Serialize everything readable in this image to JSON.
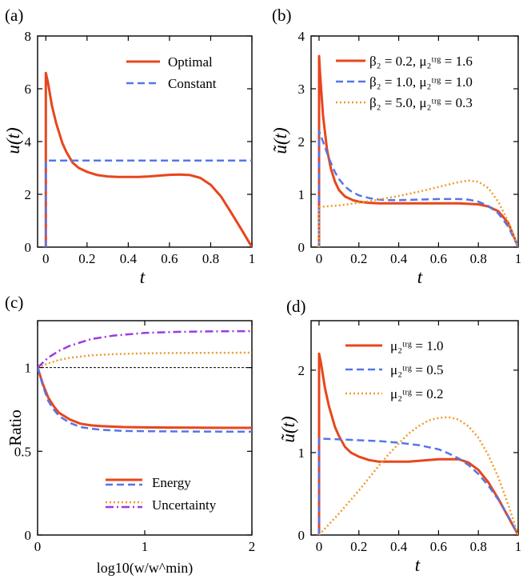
{
  "colors": {
    "red": "#e8461c",
    "blue": "#5576e8",
    "orange": "#f29a2a",
    "purple": "#9b3be0",
    "black": "#000000"
  },
  "chart_data": [
    {
      "id": "a",
      "panel_label": "(a)",
      "type": "line",
      "xlabel": "t",
      "ylabel": "u(t)",
      "xlim": [
        -0.04,
        1.0
      ],
      "ylim": [
        0,
        8
      ],
      "xticks": [
        0,
        0.2,
        0.4,
        0.6,
        0.8,
        1.0
      ],
      "xtick_labels": [
        "0",
        "0.2",
        "0.4",
        "0.6",
        "0.8",
        "1"
      ],
      "yticks": [
        0,
        2,
        4,
        6,
        8
      ],
      "ytick_labels": [
        "0",
        "2",
        "4",
        "6",
        "8"
      ],
      "legend_position": "top-right",
      "series": [
        {
          "name": "Optimal",
          "color": "red",
          "style": "solid",
          "x": [
            0,
            0,
            0.01,
            0.03,
            0.05,
            0.08,
            0.1,
            0.13,
            0.16,
            0.2,
            0.25,
            0.3,
            0.35,
            0.4,
            0.45,
            0.5,
            0.55,
            0.6,
            0.65,
            0.7,
            0.75,
            0.8,
            0.85,
            0.9,
            0.95,
            1.0
          ],
          "y": [
            0,
            6.6,
            6.25,
            5.35,
            4.7,
            3.95,
            3.6,
            3.2,
            3.0,
            2.85,
            2.73,
            2.68,
            2.66,
            2.66,
            2.66,
            2.68,
            2.71,
            2.74,
            2.75,
            2.73,
            2.62,
            2.36,
            1.92,
            1.3,
            0.66,
            0.0
          ]
        },
        {
          "name": "Constant",
          "color": "blue",
          "style": "dashed",
          "x": [
            0,
            0,
            1.0
          ],
          "y": [
            0,
            3.28,
            3.28
          ]
        }
      ]
    },
    {
      "id": "b",
      "panel_label": "(b)",
      "type": "line",
      "xlabel": "t",
      "ylabel": "ũ(t)",
      "xlim": [
        -0.04,
        1.0
      ],
      "ylim": [
        0,
        4
      ],
      "xticks": [
        0,
        0.2,
        0.4,
        0.6,
        0.8,
        1.0
      ],
      "xtick_labels": [
        "0",
        "0.2",
        "0.4",
        "0.6",
        "0.8",
        "1"
      ],
      "yticks": [
        0,
        1,
        2,
        3,
        4
      ],
      "ytick_labels": [
        "0",
        "1",
        "2",
        "3",
        "4"
      ],
      "legend_position": "top-right",
      "series": [
        {
          "name": "β₂ = 0.2, μ₂ᵗʳᵍ = 1.6",
          "color": "red",
          "style": "solid",
          "x": [
            0,
            0,
            0.005,
            0.02,
            0.04,
            0.06,
            0.08,
            0.1,
            0.13,
            0.17,
            0.2,
            0.25,
            0.3,
            0.4,
            0.5,
            0.6,
            0.7,
            0.8,
            0.85,
            0.9,
            0.95,
            1.0
          ],
          "y": [
            0,
            3.62,
            3.3,
            2.5,
            1.85,
            1.48,
            1.24,
            1.08,
            0.96,
            0.89,
            0.86,
            0.84,
            0.83,
            0.83,
            0.83,
            0.83,
            0.83,
            0.81,
            0.77,
            0.68,
            0.46,
            0.0
          ]
        },
        {
          "name": "β₂ = 1.0, μ₂ᵗʳᵍ = 1.0",
          "color": "blue",
          "style": "dashed",
          "x": [
            0,
            0,
            0.02,
            0.05,
            0.08,
            0.1,
            0.13,
            0.16,
            0.2,
            0.25,
            0.3,
            0.35,
            0.4,
            0.5,
            0.6,
            0.7,
            0.75,
            0.8,
            0.85,
            0.9,
            0.95,
            1.0
          ],
          "y": [
            0,
            2.2,
            2.0,
            1.68,
            1.42,
            1.29,
            1.15,
            1.06,
            0.98,
            0.93,
            0.9,
            0.89,
            0.89,
            0.9,
            0.91,
            0.91,
            0.9,
            0.86,
            0.78,
            0.64,
            0.39,
            0.0
          ]
        },
        {
          "name": "β₂ = 5.0, μ₂ᵗʳᵍ = 0.3",
          "color": "orange",
          "style": "dotted",
          "x": [
            0,
            0,
            0.1,
            0.2,
            0.3,
            0.4,
            0.5,
            0.6,
            0.7,
            0.75,
            0.8,
            0.85,
            0.9,
            0.95,
            1.0
          ],
          "y": [
            0,
            0.76,
            0.79,
            0.84,
            0.9,
            0.97,
            1.05,
            1.14,
            1.23,
            1.26,
            1.24,
            1.12,
            0.86,
            0.48,
            0.0
          ]
        }
      ]
    },
    {
      "id": "c",
      "panel_label": "(c)",
      "type": "line",
      "xlabel": "log10(w/w^min)",
      "ylabel": "Ratio",
      "xlim": [
        0,
        2
      ],
      "ylim": [
        0,
        1.28
      ],
      "xticks": [
        0,
        1,
        2
      ],
      "xtick_labels": [
        "0",
        "1",
        "2"
      ],
      "yticks": [
        0,
        0.5,
        1
      ],
      "ytick_labels": [
        "0",
        "0.5",
        "1"
      ],
      "legend_position": "bottom-right",
      "reference_line": {
        "y": 1.0,
        "color": "black",
        "style": "thin-dashed"
      },
      "series": [
        {
          "name": "Energy",
          "group": "Energy",
          "color": "red",
          "style": "solid",
          "x": [
            0,
            0.05,
            0.1,
            0.15,
            0.2,
            0.3,
            0.4,
            0.5,
            0.6,
            0.8,
            1.0,
            1.2,
            1.5,
            2.0
          ],
          "y": [
            1.0,
            0.9,
            0.82,
            0.77,
            0.73,
            0.69,
            0.665,
            0.655,
            0.65,
            0.645,
            0.643,
            0.642,
            0.641,
            0.64
          ]
        },
        {
          "name": "Energy (dashed)",
          "group": "Energy",
          "color": "blue",
          "style": "dashed",
          "x": [
            0,
            0.05,
            0.1,
            0.15,
            0.2,
            0.3,
            0.4,
            0.5,
            0.6,
            0.8,
            1.0,
            1.2,
            1.5,
            2.0
          ],
          "y": [
            1.0,
            0.89,
            0.8,
            0.75,
            0.71,
            0.67,
            0.645,
            0.635,
            0.628,
            0.622,
            0.62,
            0.619,
            0.618,
            0.617
          ]
        },
        {
          "name": "Uncertainty (dotted)",
          "group": "Uncertainty",
          "color": "orange",
          "style": "dotted",
          "x": [
            0,
            0.1,
            0.2,
            0.3,
            0.5,
            0.7,
            1.0,
            1.3,
            1.6,
            2.0
          ],
          "y": [
            1.0,
            1.025,
            1.045,
            1.058,
            1.073,
            1.08,
            1.085,
            1.087,
            1.088,
            1.089
          ]
        },
        {
          "name": "Uncertainty",
          "group": "Uncertainty",
          "color": "purple",
          "style": "dashdot",
          "x": [
            0,
            0.1,
            0.2,
            0.3,
            0.5,
            0.7,
            1.0,
            1.3,
            1.6,
            2.0
          ],
          "y": [
            1.0,
            1.06,
            1.1,
            1.13,
            1.17,
            1.19,
            1.207,
            1.213,
            1.216,
            1.218
          ]
        }
      ],
      "legend_entries": [
        {
          "label": "Energy",
          "colors": [
            "red",
            "blue"
          ],
          "styles": [
            "solid",
            "dashed"
          ]
        },
        {
          "label": "Uncertainty",
          "colors": [
            "orange",
            "purple"
          ],
          "styles": [
            "dotted",
            "dashdot"
          ]
        }
      ]
    },
    {
      "id": "d",
      "panel_label": "(d)",
      "type": "line",
      "xlabel": "t",
      "ylabel": "ũ(t)",
      "xlim": [
        -0.04,
        1.0
      ],
      "ylim": [
        0,
        2.6
      ],
      "xticks": [
        0,
        0.2,
        0.4,
        0.6,
        0.8,
        1.0
      ],
      "xtick_labels": [
        "0",
        "0.2",
        "0.4",
        "0.6",
        "0.8",
        "1"
      ],
      "yticks": [
        0,
        1,
        2
      ],
      "ytick_labels": [
        "0",
        "1",
        "2"
      ],
      "legend_position": "top-right",
      "series": [
        {
          "name": "μ₂ᵗʳᵍ = 1.0",
          "color": "red",
          "style": "solid",
          "x": [
            0,
            0,
            0.01,
            0.03,
            0.05,
            0.08,
            0.1,
            0.13,
            0.16,
            0.2,
            0.25,
            0.3,
            0.35,
            0.4,
            0.45,
            0.5,
            0.55,
            0.6,
            0.65,
            0.7,
            0.75,
            0.8,
            0.85,
            0.9,
            0.95,
            1.0
          ],
          "y": [
            0,
            2.2,
            2.08,
            1.78,
            1.56,
            1.31,
            1.2,
            1.07,
            1.0,
            0.95,
            0.91,
            0.89,
            0.89,
            0.89,
            0.89,
            0.9,
            0.91,
            0.92,
            0.92,
            0.92,
            0.88,
            0.79,
            0.64,
            0.44,
            0.22,
            0.0
          ]
        },
        {
          "name": "μ₂ᵗʳᵍ = 0.5",
          "color": "blue",
          "style": "dashed",
          "x": [
            0,
            0,
            0.1,
            0.2,
            0.3,
            0.4,
            0.5,
            0.6,
            0.65,
            0.7,
            0.75,
            0.8,
            0.85,
            0.9,
            0.95,
            1.0
          ],
          "y": [
            0,
            1.17,
            1.16,
            1.15,
            1.14,
            1.12,
            1.09,
            1.04,
            0.99,
            0.93,
            0.85,
            0.74,
            0.6,
            0.43,
            0.23,
            0.0
          ]
        },
        {
          "name": "μ₂ᵗʳᵍ = 0.2",
          "color": "orange",
          "style": "dotted",
          "x": [
            0,
            0.05,
            0.1,
            0.15,
            0.2,
            0.25,
            0.3,
            0.35,
            0.4,
            0.45,
            0.5,
            0.55,
            0.6,
            0.65,
            0.7,
            0.75,
            0.8,
            0.85,
            0.9,
            0.95,
            1.0
          ],
          "y": [
            0,
            0.13,
            0.26,
            0.4,
            0.54,
            0.69,
            0.84,
            0.98,
            1.11,
            1.23,
            1.32,
            1.39,
            1.42,
            1.43,
            1.4,
            1.32,
            1.18,
            0.97,
            0.7,
            0.37,
            0.0
          ]
        }
      ]
    }
  ]
}
